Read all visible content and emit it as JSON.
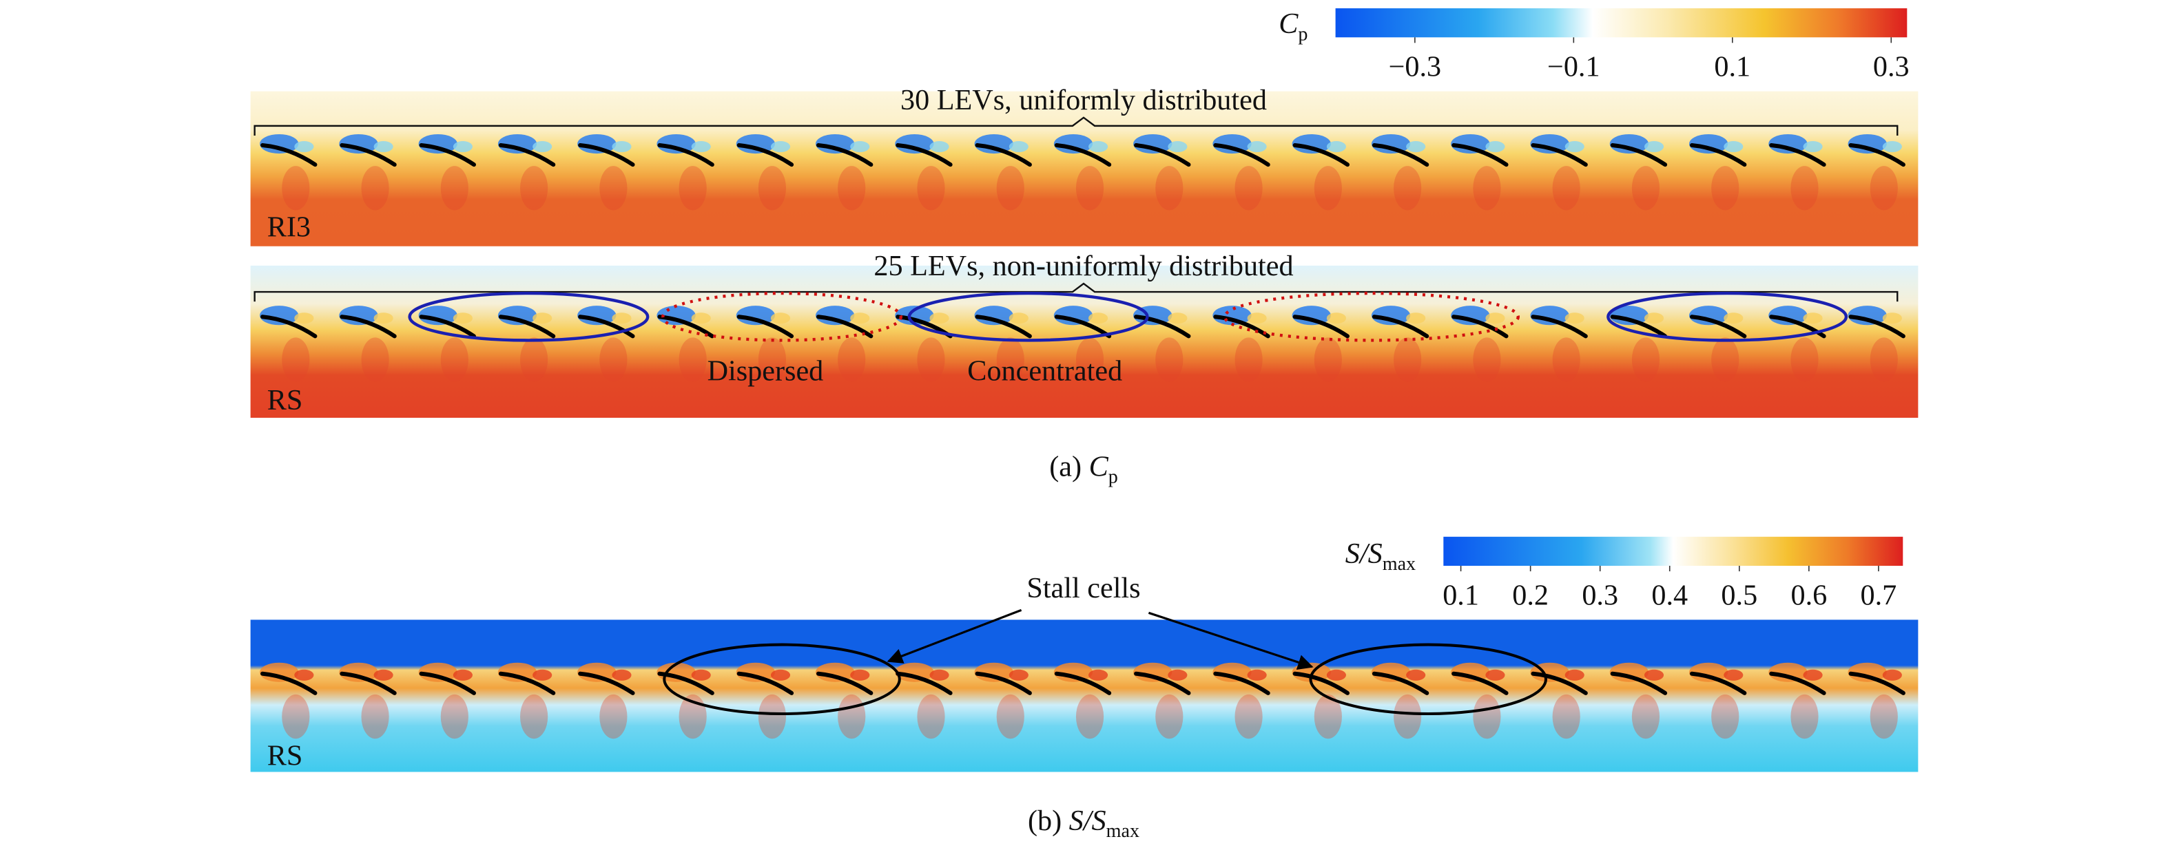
{
  "cp_colorbar": {
    "symbol": "C",
    "subscript": "p",
    "lim": [
      -0.4,
      0.32
    ],
    "ticks": [
      {
        "value": -0.3,
        "label": "−0.3"
      },
      {
        "value": -0.1,
        "label": "−0.1"
      },
      0.1,
      0.3
    ]
  },
  "panel_a": {
    "rows": [
      {
        "title": "30 LEVs, uniformly distributed",
        "label": "RI3"
      },
      {
        "title": "25 LEVs, non-uniformly distributed",
        "label": "RS",
        "annotations": [
          "Dispersed",
          "Concentrated"
        ]
      }
    ],
    "caption": {
      "prefix": "(a)",
      "symbol": "C",
      "subscript": "p"
    }
  },
  "s_colorbar": {
    "symbol": "S/S",
    "subscript": "max",
    "lim": [
      0.075,
      0.735
    ],
    "ticks": [
      0.1,
      0.2,
      0.3,
      0.4,
      0.5,
      0.6,
      0.7
    ]
  },
  "panel_b": {
    "label": "RS",
    "annotation": "Stall cells",
    "caption": {
      "prefix": "(b)",
      "symbol": "S/S",
      "subscript": "max"
    }
  }
}
